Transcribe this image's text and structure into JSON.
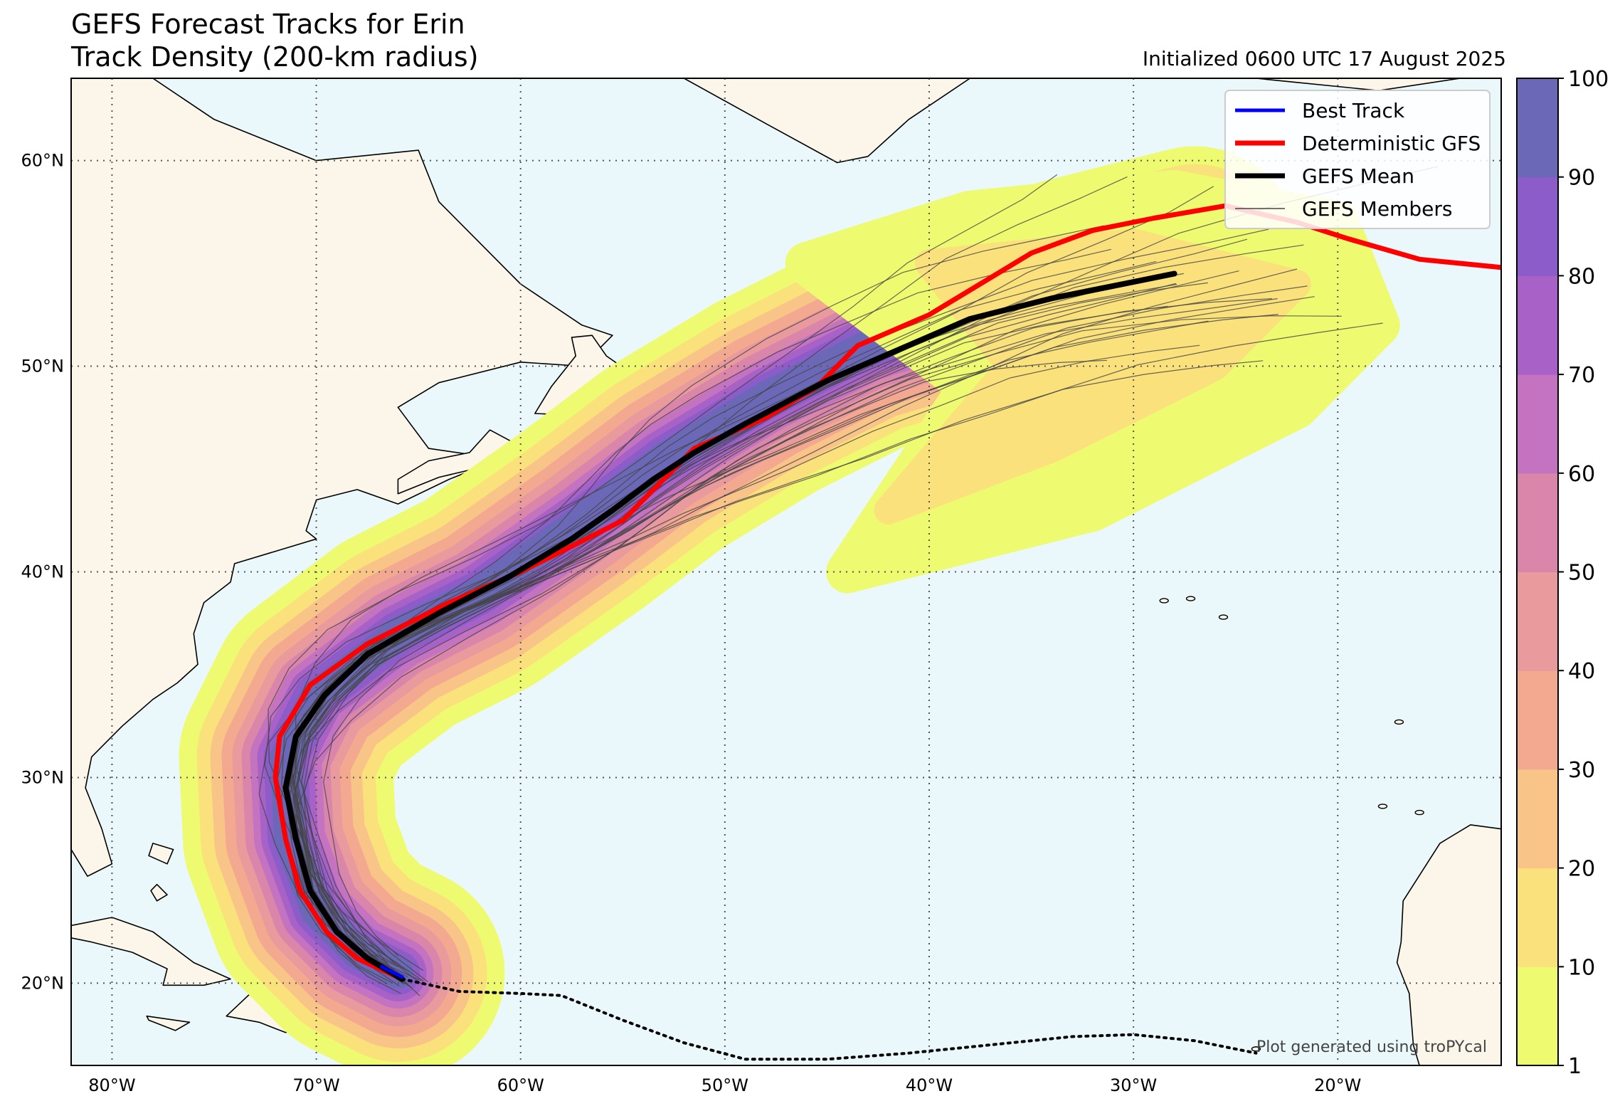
{
  "title_line1": "GEFS Forecast Tracks for Erin",
  "title_line2": "Track Density (200-km radius)",
  "init_text": "Initialized 0600 UTC 17 August 2025",
  "credit": "Plot generated using troPYcal",
  "colors": {
    "ocean": "#eaf8fc",
    "land": "#fbf5ea",
    "best_track": "#0000ff",
    "deterministic_gfs": "#ff0000",
    "gefs_mean": "#000000",
    "gefs_members": "#444444"
  },
  "legend": [
    {
      "label": "Best Track",
      "color": "#0000ff",
      "weight": "medium"
    },
    {
      "label": "Deterministic GFS",
      "color": "#ff0000",
      "weight": "thick"
    },
    {
      "label": "GEFS Mean",
      "color": "#000000",
      "weight": "thick"
    },
    {
      "label": "GEFS Members",
      "color": "#444444",
      "weight": "thin"
    }
  ],
  "lon_labels": [
    "80°W",
    "70°W",
    "60°W",
    "50°W",
    "40°W",
    "30°W",
    "20°W"
  ],
  "lat_labels": [
    "60°N",
    "50°N",
    "40°N",
    "30°N",
    "20°N"
  ],
  "colorbar": {
    "ticks": [
      "1",
      "10",
      "20",
      "30",
      "40",
      "50",
      "60",
      "70",
      "80",
      "90",
      "100"
    ],
    "colors": [
      "#eefa70",
      "#fbe17c",
      "#f8c488",
      "#f2a990",
      "#e89a9c",
      "#da86aa",
      "#c373bf",
      "#a862c7",
      "#8c5cc8",
      "#6b68b8"
    ]
  },
  "chart_data": {
    "type": "map",
    "extent": {
      "lon": [
        -82,
        -12
      ],
      "lat": [
        16,
        64
      ]
    },
    "density_levels": [
      1,
      10,
      20,
      30,
      40,
      50,
      60,
      70,
      80,
      90,
      100
    ],
    "density_centerline": [
      [
        -66,
        20.5
      ],
      [
        -68,
        21.5
      ],
      [
        -70,
        23.5
      ],
      [
        -71.3,
        27
      ],
      [
        -71.5,
        31
      ],
      [
        -70,
        34
      ],
      [
        -66,
        37
      ],
      [
        -62,
        39
      ],
      [
        -57,
        42.5
      ],
      [
        -53,
        45.5
      ],
      [
        -48,
        48.5
      ],
      [
        -43,
        51
      ],
      [
        -38,
        52.5
      ],
      [
        -33,
        54
      ],
      [
        -27,
        55.5
      ]
    ],
    "best_track": [
      [
        -66.8,
        20.8
      ],
      [
        -65.8,
        20.3
      ]
    ],
    "deterministic_gfs": [
      [
        -65.8,
        20.2
      ],
      [
        -68,
        21.2
      ],
      [
        -69.5,
        22.5
      ],
      [
        -70.8,
        24.5
      ],
      [
        -71.5,
        27
      ],
      [
        -72,
        30
      ],
      [
        -71.8,
        32
      ],
      [
        -70.3,
        34.5
      ],
      [
        -67.5,
        36.5
      ],
      [
        -63.5,
        38.5
      ],
      [
        -60,
        40
      ],
      [
        -57,
        41.5
      ],
      [
        -55,
        42.5
      ],
      [
        -53,
        44.5
      ],
      [
        -51.5,
        46
      ],
      [
        -48,
        47.5
      ],
      [
        -45.5,
        49
      ],
      [
        -43.5,
        51
      ],
      [
        -40,
        52.5
      ],
      [
        -37.5,
        54
      ],
      [
        -35,
        55.5
      ],
      [
        -32,
        56.6
      ],
      [
        -29,
        57.2
      ],
      [
        -25.5,
        57.8
      ],
      [
        -22,
        57
      ],
      [
        -19.5,
        56.2
      ],
      [
        -16,
        55.2
      ],
      [
        -12,
        54.8
      ]
    ],
    "gefs_mean": [
      [
        -65.8,
        20.2
      ],
      [
        -67.5,
        21.2
      ],
      [
        -69,
        22.5
      ],
      [
        -70.3,
        24.5
      ],
      [
        -71,
        27
      ],
      [
        -71.5,
        29.5
      ],
      [
        -71,
        32
      ],
      [
        -69.6,
        34
      ],
      [
        -67.5,
        36
      ],
      [
        -64,
        38
      ],
      [
        -60.5,
        39.8
      ],
      [
        -57.5,
        41.6
      ],
      [
        -55.5,
        43
      ],
      [
        -53.5,
        44.5
      ],
      [
        -51.5,
        45.8
      ],
      [
        -49,
        47.2
      ],
      [
        -45,
        49.3
      ],
      [
        -41.5,
        50.8
      ],
      [
        -38,
        52.3
      ],
      [
        -34,
        53.3
      ],
      [
        -30.5,
        54
      ],
      [
        -28,
        54.5
      ]
    ],
    "dotted_history": [
      [
        -65.8,
        20.2
      ],
      [
        -63,
        19.6
      ],
      [
        -60,
        19.5
      ],
      [
        -58,
        19.4
      ],
      [
        -55,
        18.2
      ],
      [
        -52,
        17.1
      ],
      [
        -49,
        16.3
      ],
      [
        -45,
        16.3
      ],
      [
        -41,
        16.6
      ],
      [
        -37,
        17
      ],
      [
        -33,
        17.4
      ],
      [
        -30,
        17.5
      ],
      [
        -27,
        17.2
      ],
      [
        -25,
        16.8
      ],
      [
        -24,
        16.6
      ]
    ],
    "gefs_member_count": 30
  }
}
